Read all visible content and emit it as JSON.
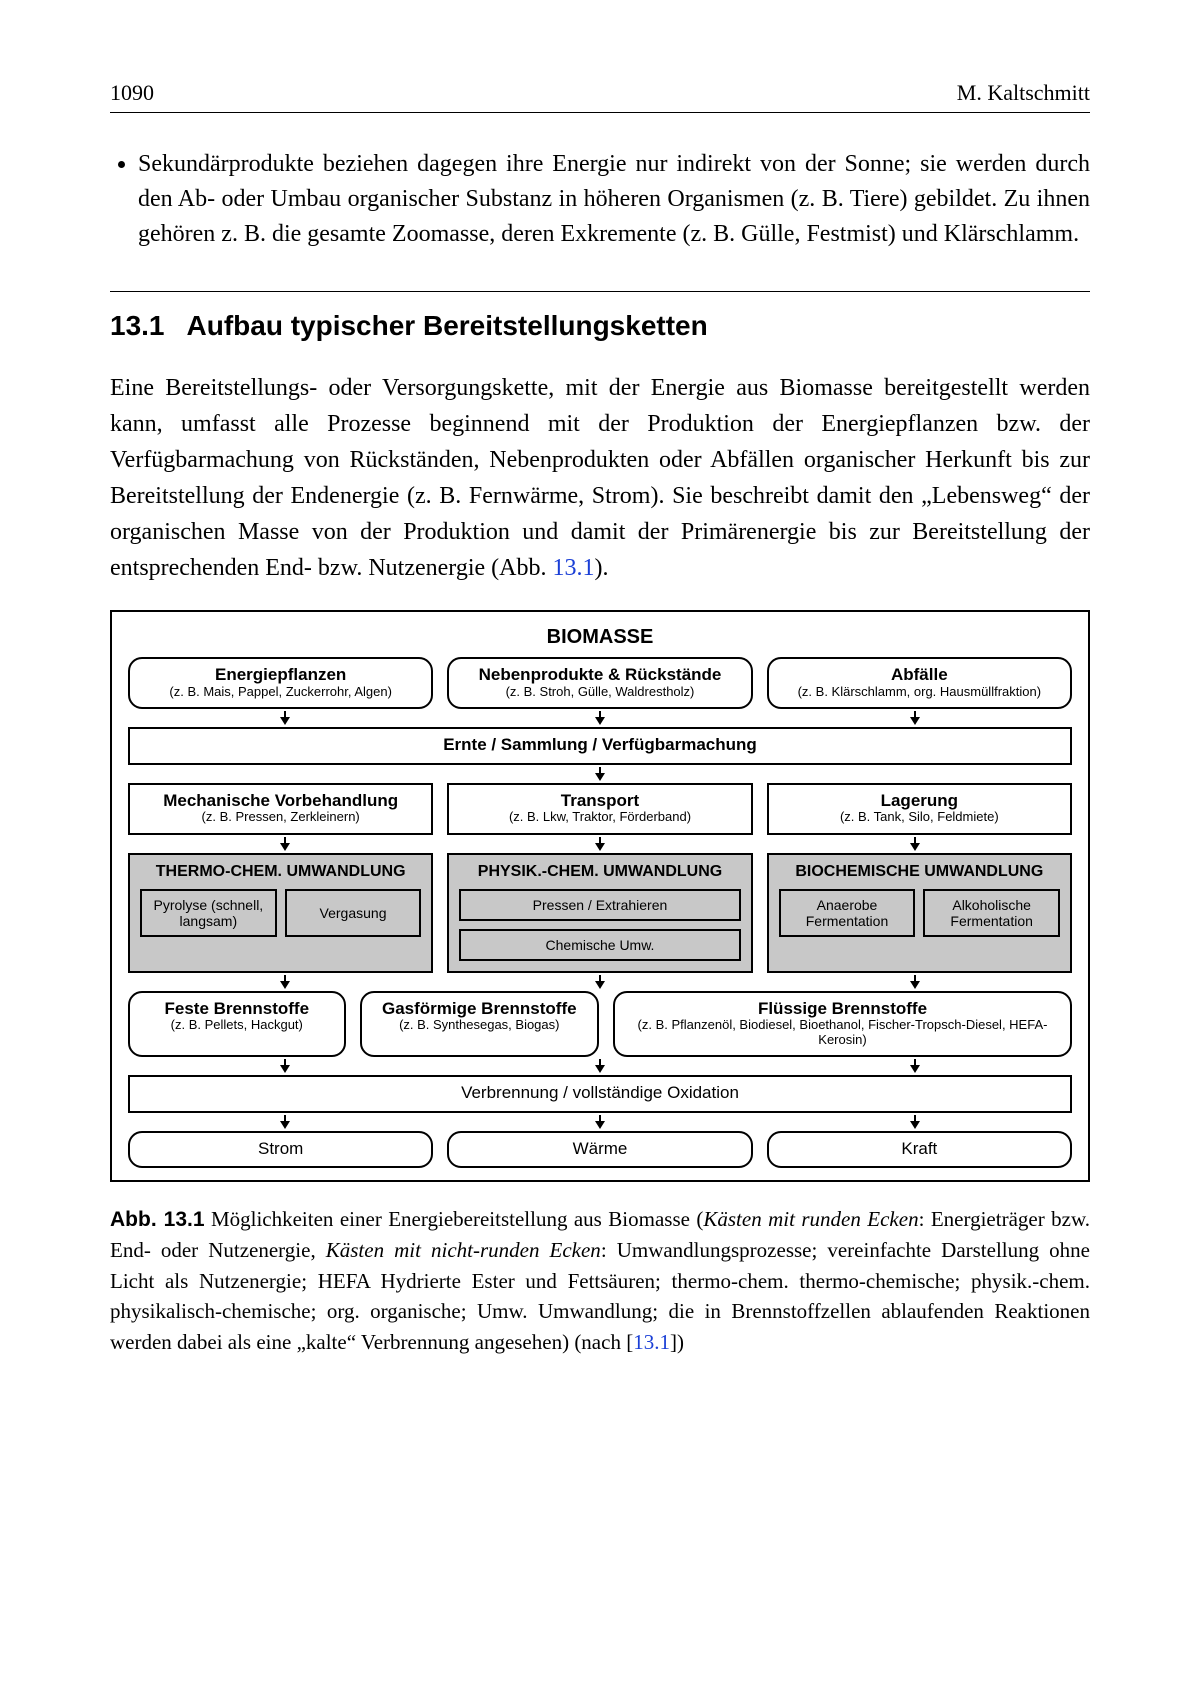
{
  "page": {
    "number": "1090",
    "author": "M. Kaltschmitt"
  },
  "bullet": "Sekundärprodukte beziehen dagegen ihre Energie nur indirekt von der Sonne; sie werden durch den Ab- oder Umbau organischer Substanz in höheren Organismen (z. B. Tiere) gebildet. Zu ihnen gehören z. B. die gesamte Zoomasse, deren Exkremente (z. B. Gülle, Festmist) und Klärschlamm.",
  "section": {
    "num": "13.1",
    "title": "Aufbau typischer Bereitstellungsketten"
  },
  "para": {
    "pre": "Eine Bereitstellungs- oder Versorgungskette, mit der Energie aus Biomasse bereitgestellt werden kann, umfasst alle Prozesse beginnend mit der Produktion der Energiepflanzen bzw. der Verfügbarmachung von Rückständen, Nebenprodukten oder Abfällen organischer Herkunft bis zur Bereitstellung der Endenergie (z. B. Fernwärme, Strom). Sie beschreibt damit den „Lebensweg“ der organischen Masse von der Produktion und damit der Primärenergie bis zur Bereitstellung der entsprechenden End- bzw. Nutzenergie (Abb. ",
    "ref": "13.1",
    "post": ")."
  },
  "figure": {
    "colors": {
      "conv_bg": "#c8c8c8",
      "border": "#000000",
      "bg": "#ffffff",
      "link": "#1a3fd6"
    },
    "title": "BIOMASSE",
    "sources": [
      {
        "t1": "Energiepflanzen",
        "t2": "(z. B. Mais, Pappel, Zuckerrohr, Algen)"
      },
      {
        "t1": "Nebenprodukte & Rückstände",
        "t2": "(z. B. Stroh, Gülle, Waldrestholz)"
      },
      {
        "t1": "Abfälle",
        "t2": "(z. B. Klärschlamm, org. Hausmüllfraktion)"
      }
    ],
    "harvest": {
      "t1": "Ernte / Sammlung / Verfügbarmachung"
    },
    "logistics": [
      {
        "t1": "Mechanische Vorbehandlung",
        "t2": "(z. B. Pressen, Zerkleinern)"
      },
      {
        "t1": "Transport",
        "t2": "(z. B. Lkw, Traktor, Förderband)"
      },
      {
        "t1": "Lagerung",
        "t2": "(z. B. Tank, Silo, Feldmiete)"
      }
    ],
    "conversions": [
      {
        "hdr": "THERMO-CHEM. UMWANDLUNG",
        "cells": [
          {
            "label": "Pyrolyse (schnell, langsam)"
          },
          {
            "label": "Vergasung"
          }
        ]
      },
      {
        "hdr": "PHYSIK.-CHEM. UMWANDLUNG",
        "cells": [
          {
            "label": "Pressen / Extrahieren"
          },
          {
            "label": "Chemische Umw."
          }
        ],
        "stacked": true
      },
      {
        "hdr": "BIOCHEMISCHE UMWANDLUNG",
        "cells": [
          {
            "label": "Anaerobe Fermentation"
          },
          {
            "label": "Alkoholische Fermentation"
          }
        ]
      }
    ],
    "fuels": [
      {
        "t1": "Feste Brennstoffe",
        "t2": "(z. B. Pellets, Hackgut)"
      },
      {
        "t1": "Gasförmige Brennstoffe",
        "t2": "(z. B. Synthesegas, Biogas)"
      },
      {
        "t1": "Flüssige Brennstoffe",
        "t2": "(z. B. Pflanzenöl, Biodiesel, Bioethanol, Fischer-Tropsch-Diesel, HEFA-Kerosin)"
      }
    ],
    "combust": {
      "t1": "Verbrennung / vollständige Oxidation"
    },
    "outputs": [
      {
        "t1": "Strom"
      },
      {
        "t1": "Wärme"
      },
      {
        "t1": "Kraft"
      }
    ]
  },
  "caption": {
    "lead": "Abb. 13.1",
    "pre": " Möglichkeiten einer Energiebereitstellung aus Biomasse (",
    "ital1": "Kästen mit runden Ecken",
    "mid1": ": Energieträger bzw. End- oder Nutzenergie, ",
    "ital2": "Kästen mit nicht-runden Ecken",
    "mid2": ": Umwandlungsprozesse; vereinfachte Darstellung ohne Licht als Nutzenergie; HEFA Hydrierte Ester und Fettsäuren; thermo-chem. thermo-chemische; physik.-chem. physikalisch-chemische; org. organische; Umw. Umwandlung; die in Brennstoffzellen ablaufenden Reaktionen werden dabei als eine „kalte“ Verbrennung angesehen) (nach [",
    "ref": "13.1",
    "post": "])"
  }
}
